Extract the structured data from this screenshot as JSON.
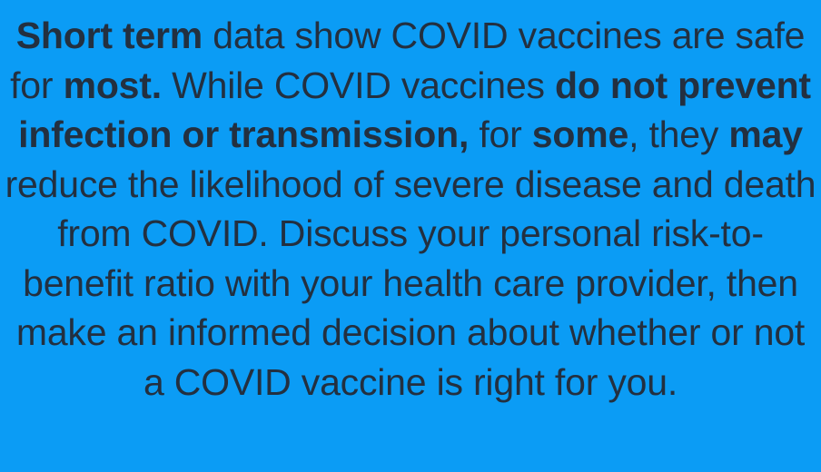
{
  "notice": {
    "s1": "Short term",
    "s2": " data show COVID vaccines are safe for ",
    "s3": "most.",
    "s4": " While COVID vaccines ",
    "s5": "do not prevent infection or transmission,",
    "s6": " for ",
    "s7": "some",
    "s8": ", they ",
    "s9": "may",
    "s10": " reduce the likelihood of severe disease and death from COVID. Discuss your personal risk-to-benefit ratio with your health care provider, then make an informed decision about whether or not a COVID vaccine is right for you."
  },
  "colors": {
    "background": "#0b9cf5",
    "text": "#233040"
  }
}
